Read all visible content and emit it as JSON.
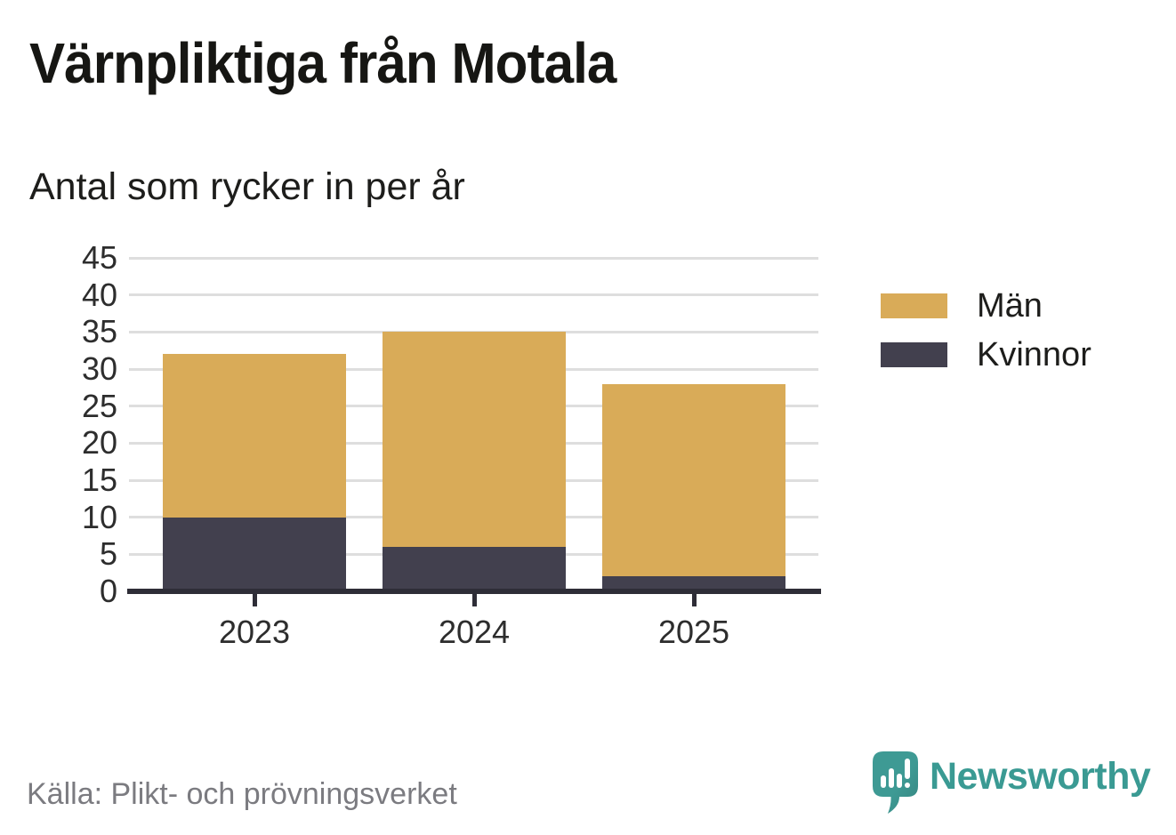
{
  "header": {
    "title": "Värnpliktiga från Motala",
    "subtitle": "Antal som rycker in per år"
  },
  "footer": {
    "source": "Källa: Plikt- och prövningsverket",
    "brand_name": "Newsworthy"
  },
  "colors": {
    "men": "#d9ab58",
    "women": "#42404e",
    "axis": "#2e2d37",
    "grid": "#dedede",
    "title_text": "#161613",
    "tick_text": "#2d2d2d",
    "muted_text": "#7b7b80",
    "brand_teal": "#3a9a93"
  },
  "chart_data": {
    "type": "bar",
    "stacked": true,
    "title": "Värnpliktiga från Motala",
    "subtitle": "Antal som rycker in per år",
    "categories": [
      "2023",
      "2024",
      "2025"
    ],
    "series": [
      {
        "name": "Män",
        "color": "#d9ab58",
        "values": [
          22,
          29,
          26
        ]
      },
      {
        "name": "Kvinnor",
        "color": "#42404e",
        "values": [
          10,
          6,
          2
        ]
      }
    ],
    "stack_order_bottom_to_top": [
      "Kvinnor",
      "Män"
    ],
    "stack_totals": [
      32,
      35,
      28
    ],
    "xlabel": "",
    "ylabel": "",
    "ylim": [
      0,
      45
    ],
    "yticks": [
      0,
      5,
      10,
      15,
      20,
      25,
      30,
      35,
      40,
      45
    ],
    "grid": true,
    "legend_position": "right",
    "legend": [
      "Män",
      "Kvinnor"
    ]
  }
}
